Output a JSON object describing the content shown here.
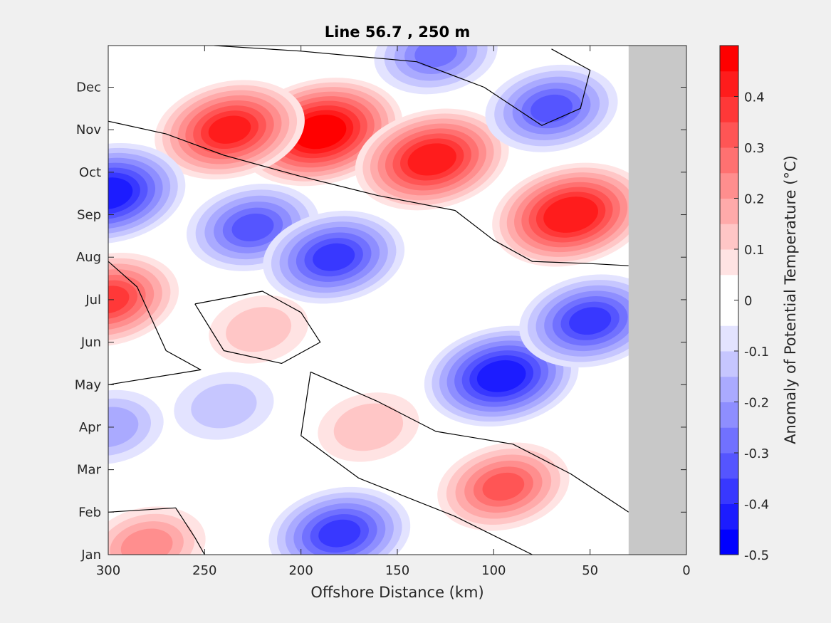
{
  "chart_data": {
    "type": "heatmap",
    "title": "Line 56.7 , 250 m",
    "xlabel": "Offshore Distance (km)",
    "colorbar_label": "Anomaly of Potential Temperature (°C)",
    "x_reversed": true,
    "xlim": [
      0,
      300
    ],
    "x_ticks": [
      {
        "value": 300,
        "label": "300"
      },
      {
        "value": 250,
        "label": "250"
      },
      {
        "value": 200,
        "label": "200"
      },
      {
        "value": 150,
        "label": "150"
      },
      {
        "value": 100,
        "label": "100"
      },
      {
        "value": 50,
        "label": "50"
      },
      {
        "value": 0,
        "label": "0"
      }
    ],
    "y_ticks": [
      {
        "value": 1,
        "label": "Jan"
      },
      {
        "value": 2,
        "label": "Feb"
      },
      {
        "value": 3,
        "label": "Mar"
      },
      {
        "value": 4,
        "label": "Apr"
      },
      {
        "value": 5,
        "label": "May"
      },
      {
        "value": 6,
        "label": "Jun"
      },
      {
        "value": 7,
        "label": "Jul"
      },
      {
        "value": 8,
        "label": "Aug"
      },
      {
        "value": 9,
        "label": "Sep"
      },
      {
        "value": 10,
        "label": "Oct"
      },
      {
        "value": 11,
        "label": "Nov"
      },
      {
        "value": 12,
        "label": "Dec"
      }
    ],
    "ylim": [
      1,
      12.98
    ],
    "no_data_x_range": [
      0,
      30
    ],
    "no_data_color": "#c8c8c8",
    "contour_levels": [
      -0.5,
      -0.45,
      -0.4,
      -0.35,
      -0.3,
      -0.25,
      -0.2,
      -0.15,
      -0.1,
      -0.05,
      0,
      0.05,
      0.1,
      0.15,
      0.2,
      0.25,
      0.3,
      0.35,
      0.4,
      0.45,
      0.5
    ],
    "zero_contour_color": "#000000",
    "colorbar": {
      "range": [
        -0.5,
        0.5
      ],
      "ticks": [
        {
          "value": 0.4,
          "label": "0.4"
        },
        {
          "value": 0.3,
          "label": "0.3"
        },
        {
          "value": 0.2,
          "label": "0.2"
        },
        {
          "value": 0.1,
          "label": "0.1"
        },
        {
          "value": 0,
          "label": "0"
        },
        {
          "value": -0.1,
          "label": "-0.1"
        },
        {
          "value": -0.2,
          "label": "-0.2"
        },
        {
          "value": -0.3,
          "label": "-0.3"
        },
        {
          "value": -0.4,
          "label": "-0.4"
        },
        {
          "value": -0.5,
          "label": "-0.5"
        }
      ],
      "colors": [
        "#0000ff",
        "#1c1cff",
        "#3838ff",
        "#5555ff",
        "#7171ff",
        "#8e8eff",
        "#aaaaff",
        "#c6c6ff",
        "#e3e3ff",
        "#ffffff",
        "#ffffff",
        "#ffe3e3",
        "#ffc6c6",
        "#ffaaaa",
        "#ff8e8e",
        "#ff7171",
        "#ff5555",
        "#ff3838",
        "#ff1c1c",
        "#ff0000"
      ]
    },
    "anomaly_centers": [
      {
        "x": 190,
        "y": 10.95,
        "value": 0.48
      },
      {
        "x": 237,
        "y": 11.0,
        "value": 0.4
      },
      {
        "x": 132,
        "y": 10.3,
        "value": 0.42
      },
      {
        "x": 60,
        "y": 9.0,
        "value": 0.44
      },
      {
        "x": 95,
        "y": 2.6,
        "value": 0.3
      },
      {
        "x": 222,
        "y": 6.3,
        "value": 0.12
      },
      {
        "x": 165,
        "y": 4.0,
        "value": 0.13
      },
      {
        "x": 300,
        "y": 7.0,
        "value": 0.35
      },
      {
        "x": 280,
        "y": 1.2,
        "value": 0.22
      },
      {
        "x": 96,
        "y": 5.2,
        "value": -0.42
      },
      {
        "x": 50,
        "y": 6.5,
        "value": -0.35
      },
      {
        "x": 300,
        "y": 9.5,
        "value": -0.42
      },
      {
        "x": 225,
        "y": 8.7,
        "value": -0.3
      },
      {
        "x": 183,
        "y": 8.0,
        "value": -0.35
      },
      {
        "x": 180,
        "y": 1.5,
        "value": -0.35
      },
      {
        "x": 70,
        "y": 11.5,
        "value": -0.3
      },
      {
        "x": 130,
        "y": 12.8,
        "value": -0.25
      },
      {
        "x": 300,
        "y": 4.0,
        "value": -0.18
      },
      {
        "x": 240,
        "y": 4.5,
        "value": -0.12
      }
    ]
  }
}
